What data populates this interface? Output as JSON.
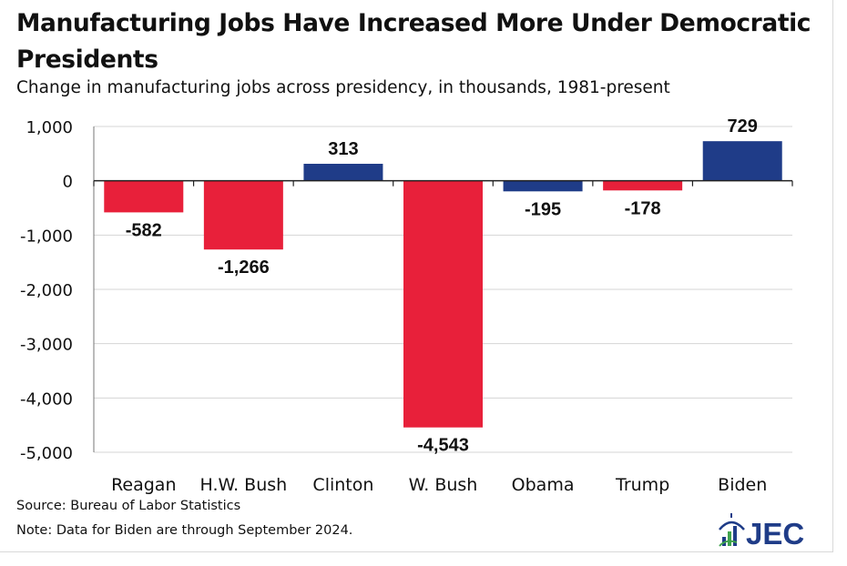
{
  "header": {
    "title": "Manufacturing Jobs Have Increased More Under Democratic Presidents",
    "subtitle": "Change in manufacturing jobs across presidency, in thousands, 1981-present"
  },
  "footer": {
    "source": "Source: Bureau of Labor Statistics",
    "note": "Note: Data for Biden are through September 2024."
  },
  "logo": {
    "text": "JEC",
    "icon": "capitol-dome-icon"
  },
  "colors": {
    "democratic": "#1f3c88",
    "republican": "#e8203a"
  },
  "chart_data": {
    "type": "bar",
    "title": "Manufacturing Jobs Have Increased More Under Democratic Presidents",
    "subtitle": "Change in manufacturing jobs across presidency, in thousands, 1981-present",
    "categories": [
      "Reagan",
      "H.W. Bush",
      "Clinton",
      "W. Bush",
      "Obama",
      "Trump",
      "Biden"
    ],
    "values": [
      -582,
      -1266,
      313,
      -4543,
      -195,
      -178,
      729
    ],
    "value_labels": [
      "-582",
      "-1,266",
      "313",
      "-4,543",
      "-195",
      "-178",
      "729"
    ],
    "party": [
      "R",
      "R",
      "D",
      "R",
      "D",
      "R",
      "D"
    ],
    "ylim": [
      -5000,
      1000
    ],
    "yticks": [
      1000,
      0,
      -1000,
      -2000,
      -3000,
      -4000,
      -5000
    ],
    "ytick_labels": [
      "1,000",
      "0",
      "-1,000",
      "-2,000",
      "-3,000",
      "-4,000",
      "-5,000"
    ],
    "grid": true,
    "legend": "none"
  }
}
